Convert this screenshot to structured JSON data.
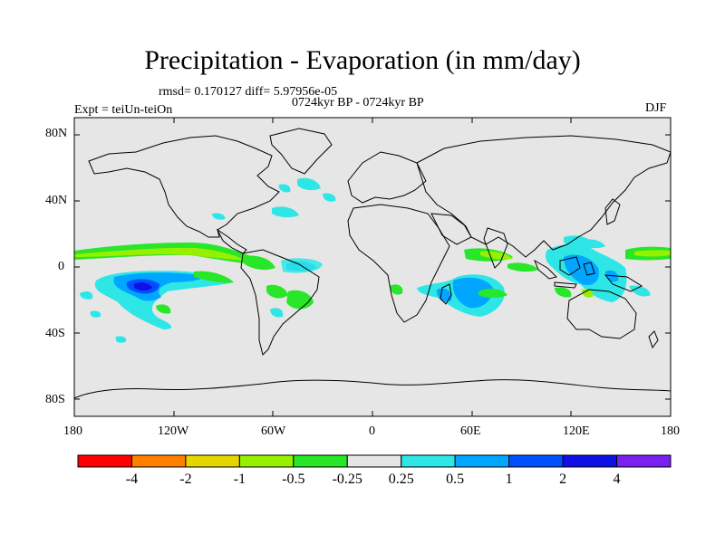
{
  "title": "Precipitation - Evaporation (in mm/day)",
  "stats": "rmsd= 0.170127 diff= 5.97956e-05",
  "period": "0724kyr BP - 0724kyr BP",
  "experiment": "Expt = teiUn-teiOn",
  "season": "DJF",
  "lat_ticks": [
    "80N",
    "40N",
    "0",
    "40S",
    "80S"
  ],
  "lon_ticks": [
    "180",
    "120W",
    "60W",
    "0",
    "60E",
    "120E",
    "180"
  ],
  "colorbar": {
    "colors": [
      "#ff0000",
      "#ff8000",
      "#e6d600",
      "#96f000",
      "#28e628",
      "#e6e6e6",
      "#2ee6e6",
      "#00a6ff",
      "#0050ff",
      "#1010e6",
      "#7a20f0"
    ],
    "labels": [
      "-4",
      "-2",
      "-1",
      "-0.5",
      "-0.25",
      "0.25",
      "0.5",
      "1",
      "2",
      "4"
    ]
  }
}
